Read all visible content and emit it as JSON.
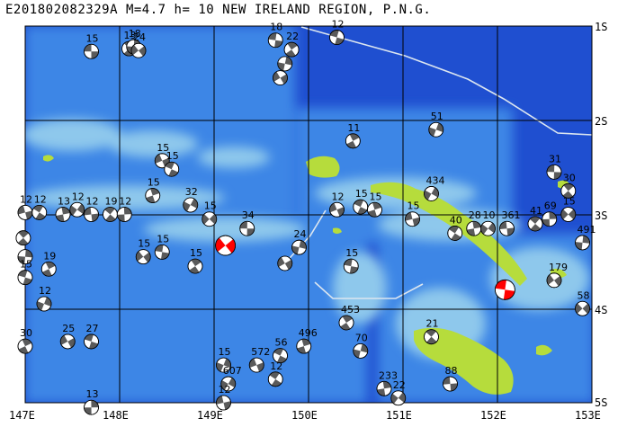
{
  "header": {
    "event_id": "E201802082329A",
    "magnitude": "M=4.7",
    "depth": "h= 10",
    "region": "NEW IRELAND REGION, P.N.G."
  },
  "axes": {
    "lon_ticks": [
      "147E",
      "148E",
      "149E",
      "150E",
      "151E",
      "152E",
      "153E"
    ],
    "lat_ticks": [
      "1S",
      "2S",
      "3S",
      "4S",
      "5S"
    ]
  },
  "colors": {
    "deep_ocean": "#1f4fd0",
    "mid_ocean": "#3d86e6",
    "shelf": "#8ec8ec",
    "land": "#b6dc3c",
    "grid": "#000000",
    "boundary": "#dce6f0",
    "event_highlight": "#ff0000"
  },
  "mechanisms": [
    {
      "lon": 147.7,
      "lat": 1.27,
      "label": "15"
    },
    {
      "lon": 148.1,
      "lat": 1.24,
      "label": "13"
    },
    {
      "lon": 148.15,
      "lat": 1.22,
      "label": "18"
    },
    {
      "lon": 148.2,
      "lat": 1.26,
      "label": "24"
    },
    {
      "lon": 149.65,
      "lat": 1.15,
      "label": "18"
    },
    {
      "lon": 149.82,
      "lat": 1.25,
      "label": "22"
    },
    {
      "lon": 149.75,
      "lat": 1.4,
      "label": ""
    },
    {
      "lon": 149.7,
      "lat": 1.55,
      "label": ""
    },
    {
      "lon": 150.3,
      "lat": 1.12,
      "label": "12"
    },
    {
      "lon": 150.47,
      "lat": 2.22,
      "label": "11"
    },
    {
      "lon": 151.35,
      "lat": 2.1,
      "label": "51"
    },
    {
      "lon": 148.45,
      "lat": 2.43,
      "label": "15"
    },
    {
      "lon": 148.55,
      "lat": 2.52,
      "label": "15"
    },
    {
      "lon": 148.35,
      "lat": 2.8,
      "label": "15"
    },
    {
      "lon": 148.75,
      "lat": 2.9,
      "label": "32"
    },
    {
      "lon": 147.0,
      "lat": 2.98,
      "label": "12"
    },
    {
      "lon": 147.15,
      "lat": 2.98,
      "label": "12"
    },
    {
      "lon": 147.4,
      "lat": 3.0,
      "label": "13"
    },
    {
      "lon": 147.55,
      "lat": 2.95,
      "label": "12"
    },
    {
      "lon": 147.7,
      "lat": 3.0,
      "label": "12"
    },
    {
      "lon": 147.9,
      "lat": 3.0,
      "label": "19"
    },
    {
      "lon": 148.05,
      "lat": 3.0,
      "label": "12"
    },
    {
      "lon": 148.95,
      "lat": 3.05,
      "label": "15"
    },
    {
      "lon": 149.35,
      "lat": 3.15,
      "label": "34"
    },
    {
      "lon": 146.98,
      "lat": 3.25,
      "label": ""
    },
    {
      "lon": 147.0,
      "lat": 3.45,
      "label": ""
    },
    {
      "lon": 148.25,
      "lat": 3.45,
      "label": "15"
    },
    {
      "lon": 148.45,
      "lat": 3.4,
      "label": "15"
    },
    {
      "lon": 148.8,
      "lat": 3.55,
      "label": "15"
    },
    {
      "lon": 149.9,
      "lat": 3.35,
      "label": "24"
    },
    {
      "lon": 149.75,
      "lat": 3.52,
      "label": ""
    },
    {
      "lon": 147.0,
      "lat": 3.67,
      "label": "15"
    },
    {
      "lon": 147.25,
      "lat": 3.58,
      "label": "19"
    },
    {
      "lon": 147.2,
      "lat": 3.95,
      "label": "12"
    },
    {
      "lon": 150.3,
      "lat": 2.95,
      "label": "12"
    },
    {
      "lon": 150.55,
      "lat": 2.92,
      "label": "15"
    },
    {
      "lon": 150.7,
      "lat": 2.95,
      "label": "15"
    },
    {
      "lon": 151.3,
      "lat": 2.78,
      "label": "434"
    },
    {
      "lon": 151.1,
      "lat": 3.05,
      "label": "15"
    },
    {
      "lon": 151.55,
      "lat": 3.2,
      "label": "40"
    },
    {
      "lon": 151.75,
      "lat": 3.15,
      "label": "28"
    },
    {
      "lon": 151.9,
      "lat": 3.15,
      "label": "10"
    },
    {
      "lon": 152.1,
      "lat": 3.15,
      "label": "361"
    },
    {
      "lon": 152.4,
      "lat": 3.1,
      "label": "41"
    },
    {
      "lon": 152.55,
      "lat": 3.05,
      "label": "69"
    },
    {
      "lon": 152.75,
      "lat": 3.0,
      "label": "15"
    },
    {
      "lon": 152.6,
      "lat": 2.55,
      "label": "31"
    },
    {
      "lon": 152.75,
      "lat": 2.75,
      "label": "30"
    },
    {
      "lon": 152.9,
      "lat": 3.3,
      "label": "491"
    },
    {
      "lon": 152.6,
      "lat": 3.7,
      "label": "179"
    },
    {
      "lon": 150.45,
      "lat": 3.55,
      "label": "15"
    },
    {
      "lon": 150.4,
      "lat": 4.15,
      "label": "453"
    },
    {
      "lon": 150.55,
      "lat": 4.45,
      "label": "70"
    },
    {
      "lon": 147.45,
      "lat": 4.35,
      "label": "25"
    },
    {
      "lon": 147.7,
      "lat": 4.35,
      "label": "27"
    },
    {
      "lon": 147.0,
      "lat": 4.4,
      "label": "30"
    },
    {
      "lon": 149.1,
      "lat": 4.6,
      "label": "15"
    },
    {
      "lon": 149.45,
      "lat": 4.6,
      "label": "572"
    },
    {
      "lon": 149.7,
      "lat": 4.5,
      "label": "56"
    },
    {
      "lon": 149.95,
      "lat": 4.4,
      "label": "496"
    },
    {
      "lon": 149.15,
      "lat": 4.8,
      "label": "607"
    },
    {
      "lon": 149.1,
      "lat": 5.0,
      "label": "12"
    },
    {
      "lon": 149.65,
      "lat": 4.75,
      "label": "12"
    },
    {
      "lon": 150.8,
      "lat": 4.85,
      "label": "233"
    },
    {
      "lon": 150.95,
      "lat": 4.95,
      "label": "22"
    },
    {
      "lon": 151.5,
      "lat": 4.8,
      "label": "88"
    },
    {
      "lon": 151.3,
      "lat": 4.3,
      "label": "21"
    },
    {
      "lon": 147.7,
      "lat": 5.05,
      "label": "13"
    },
    {
      "lon": 152.9,
      "lat": 4.0,
      "label": "58"
    }
  ],
  "events_highlight": [
    {
      "lon": 149.12,
      "lat": 3.33
    },
    {
      "lon": 152.08,
      "lat": 3.8
    }
  ]
}
